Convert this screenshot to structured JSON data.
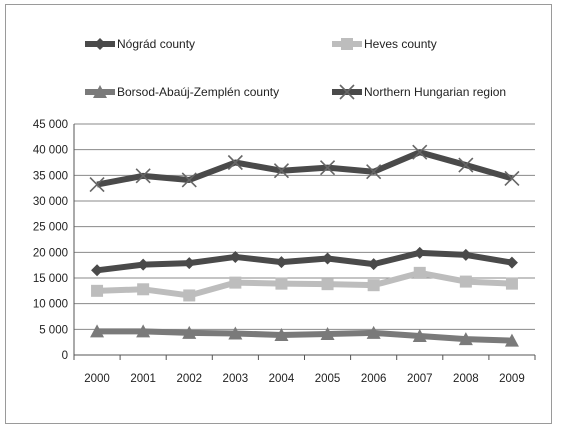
{
  "chart_data": {
    "type": "line",
    "title": "",
    "xlabel": "",
    "ylabel": "",
    "categories": [
      "2000",
      "2001",
      "2002",
      "2003",
      "2004",
      "2005",
      "2006",
      "2007",
      "2008",
      "2009"
    ],
    "ylim": [
      0,
      45000
    ],
    "yticks": [
      0,
      5000,
      10000,
      15000,
      20000,
      25000,
      30000,
      35000,
      40000,
      45000
    ],
    "ytick_labels": [
      "0",
      "5 000",
      "10 000",
      "15 000",
      "20 000",
      "25 000",
      "30 000",
      "35 000",
      "40 000",
      "45 000"
    ],
    "grid": true,
    "legend_position": "top",
    "series": [
      {
        "name": "Nógrád county",
        "marker": "diamond",
        "color": "#4a4a4a",
        "values": [
          16500,
          17600,
          17900,
          19100,
          18100,
          18800,
          17700,
          19900,
          19500,
          18000
        ]
      },
      {
        "name": "Heves county",
        "marker": "square",
        "color": "#bdbdbd",
        "values": [
          12500,
          12800,
          11600,
          14100,
          13900,
          13800,
          13600,
          16000,
          14300,
          13900
        ]
      },
      {
        "name": "Borsod-Abaúj-Zemplén county",
        "marker": "triangle",
        "color": "#7a7a7a",
        "values": [
          4600,
          4600,
          4300,
          4200,
          3900,
          4100,
          4300,
          3700,
          3100,
          2800
        ]
      },
      {
        "name": "Northern Hungarian region",
        "marker": "x",
        "color": "#4a4a4a",
        "values": [
          33200,
          34900,
          34100,
          37500,
          35900,
          36500,
          35700,
          39500,
          37000,
          34400
        ]
      }
    ]
  }
}
